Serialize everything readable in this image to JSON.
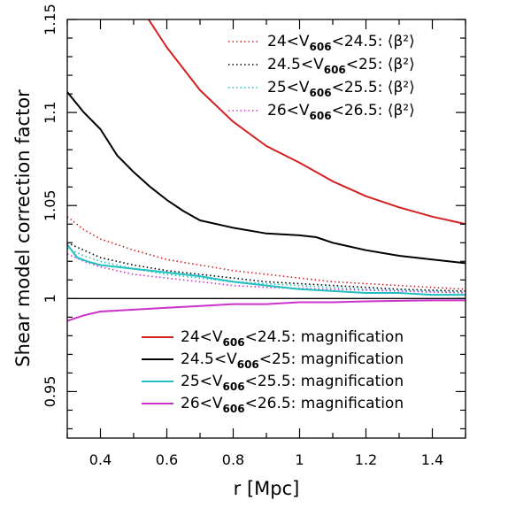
{
  "chart_data": {
    "type": "line",
    "xlabel": "r [Mpc]",
    "ylabel": "Shear model correction factor",
    "xlim": [
      0.3,
      1.5
    ],
    "ylim": [
      0.925,
      1.15
    ],
    "x_ticks": [
      {
        "value": 0.4,
        "label": "0.4"
      },
      {
        "value": 0.6,
        "label": "0.6"
      },
      {
        "value": 0.8,
        "label": "0.8"
      },
      {
        "value": 1.0,
        "label": "1"
      },
      {
        "value": 1.2,
        "label": "1.2"
      },
      {
        "value": 1.4,
        "label": "1.4"
      }
    ],
    "y_ticks": [
      {
        "value": 0.95,
        "label": "0.95"
      },
      {
        "value": 1.0,
        "label": "1"
      },
      {
        "value": 1.05,
        "label": "1.05"
      },
      {
        "value": 1.1,
        "label": "1.1"
      },
      {
        "value": 1.15,
        "label": "1.15"
      }
    ],
    "reference_line": 1.0,
    "series": [
      {
        "name": "24<V606<24.5: ⟨β²⟩",
        "label_pre": "24<V",
        "label_sub": "606",
        "label_post": "<24.5: ⟨β²⟩",
        "color": "#d42020",
        "style": "dotted",
        "x": [
          0.3,
          0.35,
          0.4,
          0.5,
          0.6,
          0.7,
          0.8,
          0.9,
          1.0,
          1.1,
          1.2,
          1.3,
          1.4,
          1.5
        ],
        "y": [
          1.044,
          1.037,
          1.032,
          1.026,
          1.021,
          1.018,
          1.015,
          1.013,
          1.011,
          1.009,
          1.008,
          1.007,
          1.006,
          1.005
        ]
      },
      {
        "name": "24.5<V606<25: ⟨β²⟩",
        "label_pre": "24.5<V",
        "label_sub": "606",
        "label_post": "<25: ⟨β²⟩",
        "color": "#000000",
        "style": "dotted",
        "x": [
          0.3,
          0.35,
          0.4,
          0.5,
          0.6,
          0.7,
          0.8,
          0.9,
          1.0,
          1.1,
          1.2,
          1.3,
          1.4,
          1.5
        ],
        "y": [
          1.03,
          1.026,
          1.022,
          1.018,
          1.015,
          1.013,
          1.011,
          1.009,
          1.008,
          1.007,
          1.006,
          1.005,
          1.0045,
          1.004
        ]
      },
      {
        "name": "25<V606<25.5: ⟨β²⟩",
        "label_pre": "25<V",
        "label_sub": "606",
        "label_post": "<25.5: ⟨β²⟩",
        "color": "#20c0c0",
        "style": "dotted",
        "x": [
          0.3,
          0.35,
          0.4,
          0.5,
          0.6,
          0.7,
          0.8,
          0.9,
          1.0,
          1.1,
          1.2,
          1.3,
          1.4,
          1.5
        ],
        "y": [
          1.027,
          1.023,
          1.02,
          1.016,
          1.013,
          1.011,
          1.009,
          1.008,
          1.007,
          1.006,
          1.005,
          1.0045,
          1.004,
          1.0035
        ]
      },
      {
        "name": "26<V606<26.5: ⟨β²⟩",
        "label_pre": "26<V",
        "label_sub": "606",
        "label_post": "<26.5: ⟨β²⟩",
        "color": "#cc33cc",
        "style": "dotted",
        "x": [
          0.3,
          0.35,
          0.4,
          0.5,
          0.6,
          0.7,
          0.8,
          0.9,
          1.0,
          1.1,
          1.2,
          1.3,
          1.4,
          1.5
        ],
        "y": [
          1.024,
          1.02,
          1.017,
          1.013,
          1.011,
          1.009,
          1.007,
          1.006,
          1.0055,
          1.005,
          1.0045,
          1.004,
          1.0035,
          1.003
        ]
      },
      {
        "name": "24<V606<24.5: magnification",
        "label_pre": "24<V",
        "label_sub": "606",
        "label_post": "<24.5: magnification",
        "color": "#d42020",
        "style": "solid",
        "x": [
          0.545,
          0.6,
          0.7,
          0.8,
          0.9,
          1.0,
          1.05,
          1.1,
          1.2,
          1.3,
          1.4,
          1.5
        ],
        "y": [
          1.15,
          1.135,
          1.112,
          1.095,
          1.082,
          1.073,
          1.068,
          1.063,
          1.055,
          1.049,
          1.044,
          1.04
        ]
      },
      {
        "name": "24.5<V606<25: magnification",
        "label_pre": "24.5<V",
        "label_sub": "606",
        "label_post": "<25: magnification",
        "color": "#000000",
        "style": "solid",
        "x": [
          0.3,
          0.35,
          0.4,
          0.45,
          0.5,
          0.55,
          0.6,
          0.65,
          0.7,
          0.8,
          0.9,
          1.0,
          1.05,
          1.1,
          1.2,
          1.3,
          1.4,
          1.5
        ],
        "y": [
          1.111,
          1.1,
          1.091,
          1.077,
          1.068,
          1.06,
          1.053,
          1.047,
          1.042,
          1.038,
          1.035,
          1.034,
          1.033,
          1.03,
          1.026,
          1.023,
          1.021,
          1.019
        ]
      },
      {
        "name": "25<V606<25.5: magnification",
        "label_pre": "25<V",
        "label_sub": "606",
        "label_post": "<25.5: magnification",
        "color": "#20c0c0",
        "style": "solid",
        "x": [
          0.3,
          0.33,
          0.36,
          0.4,
          0.45,
          0.5,
          0.55,
          0.6,
          0.7,
          0.8,
          0.9,
          1.0,
          1.1,
          1.2,
          1.3,
          1.4,
          1.5
        ],
        "y": [
          1.029,
          1.022,
          1.02,
          1.018,
          1.017,
          1.016,
          1.015,
          1.014,
          1.012,
          1.009,
          1.007,
          1.005,
          1.004,
          1.003,
          1.003,
          1.002,
          1.002
        ]
      },
      {
        "name": "26<V606<26.5: magnification",
        "label_pre": "26<V",
        "label_sub": "606",
        "label_post": "<26.5: magnification",
        "color": "#cc33cc",
        "style": "solid",
        "x": [
          0.3,
          0.35,
          0.4,
          0.5,
          0.6,
          0.7,
          0.8,
          0.9,
          1.0,
          1.1,
          1.2,
          1.3,
          1.4,
          1.5
        ],
        "y": [
          0.988,
          0.991,
          0.993,
          0.994,
          0.995,
          0.996,
          0.997,
          0.997,
          0.998,
          0.998,
          0.9985,
          0.9988,
          0.999,
          0.999
        ]
      }
    ],
    "legends": {
      "top-right": [
        0,
        1,
        2,
        3
      ],
      "bottom-right": [
        4,
        5,
        6,
        7
      ]
    }
  }
}
